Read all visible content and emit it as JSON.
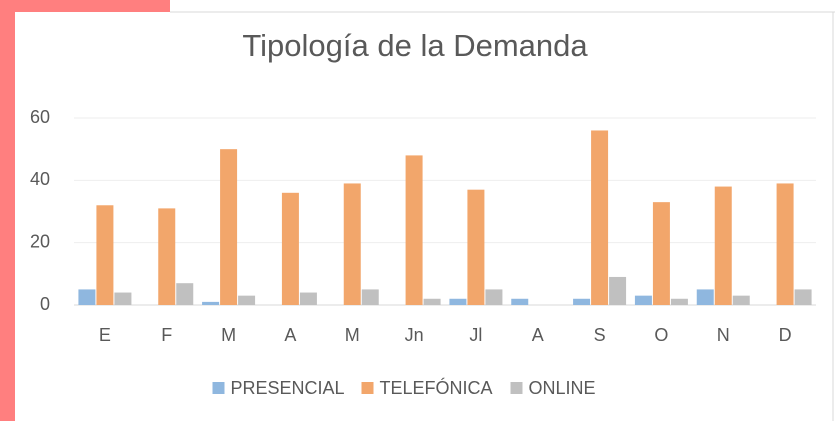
{
  "chart_data": {
    "type": "bar",
    "title": "Tipología de la Demanda",
    "categories": [
      "E",
      "F",
      "M",
      "A",
      "M",
      "Jn",
      "Jl",
      "A",
      "S",
      "O",
      "N",
      "D"
    ],
    "series": [
      {
        "name": "PRESENCIAL",
        "color": "#8fb7df",
        "values": [
          5,
          0,
          1,
          0,
          0,
          0,
          2,
          2,
          2,
          3,
          5,
          0
        ]
      },
      {
        "name": "TELEFÓNICA",
        "color": "#f2a66b",
        "values": [
          32,
          31,
          50,
          36,
          39,
          48,
          37,
          0,
          56,
          33,
          38,
          39
        ]
      },
      {
        "name": "ONLINE",
        "color": "#c0c0c0",
        "values": [
          4,
          7,
          3,
          4,
          5,
          2,
          5,
          0,
          9,
          2,
          3,
          5
        ]
      }
    ],
    "ylim": [
      0,
      60
    ],
    "yticks": [
      0,
      20,
      40,
      60
    ],
    "grid": true,
    "legend": "bottom"
  }
}
